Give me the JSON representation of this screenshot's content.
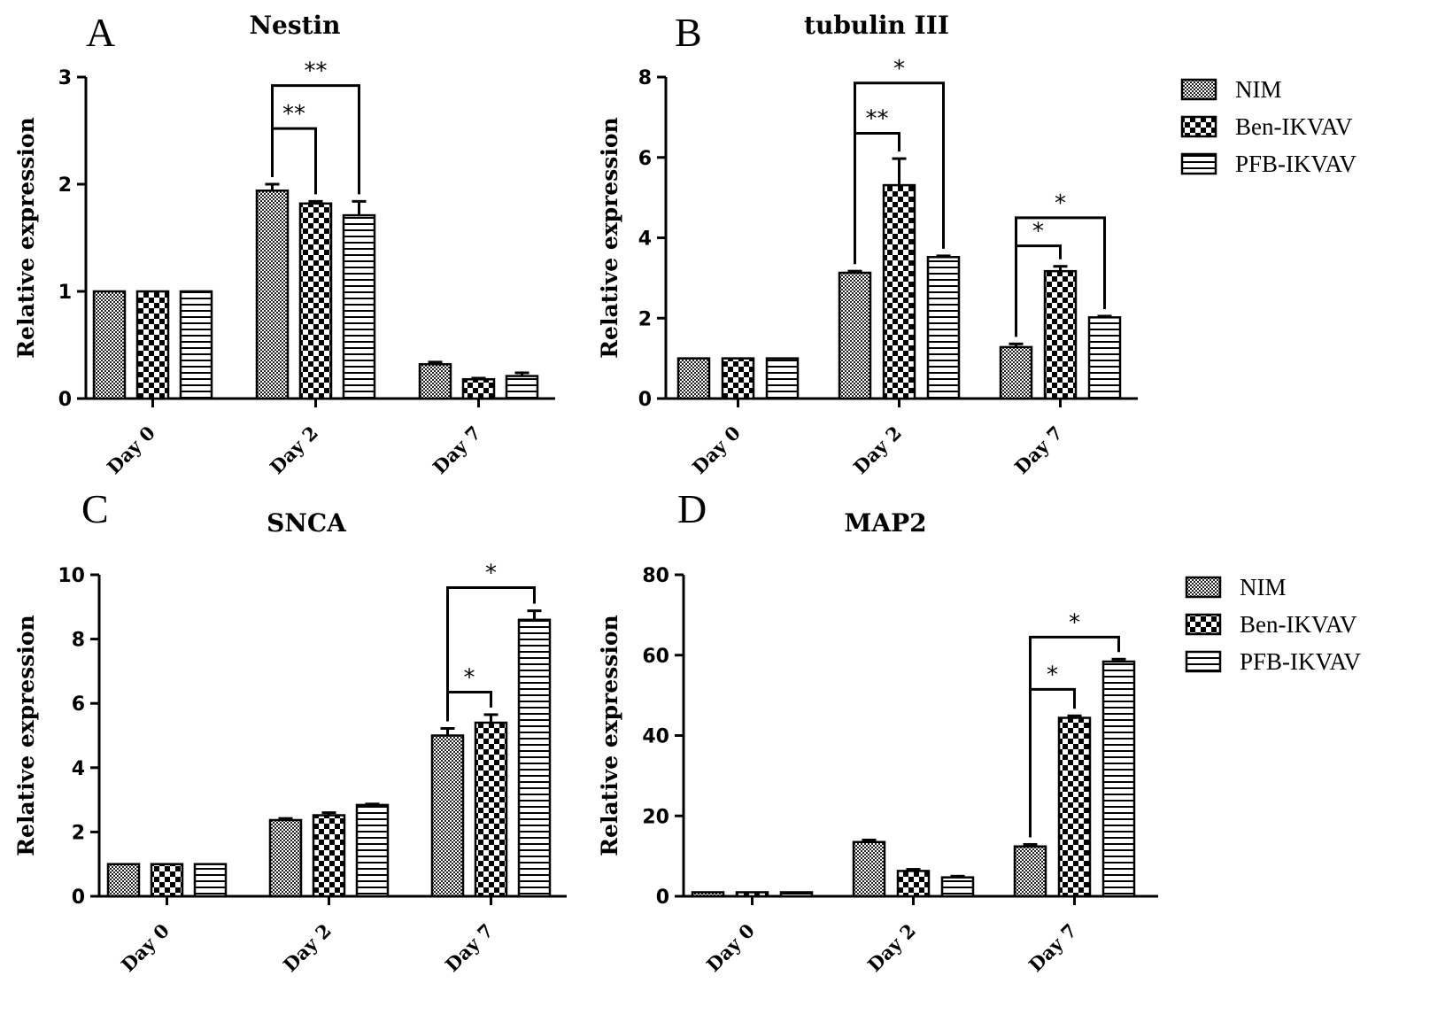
{
  "legend": [
    "NIM",
    "Ben-IKVAV",
    "PFB-IKVAV"
  ],
  "chart_data": [
    {
      "panel": "A",
      "type": "bar",
      "title": "Nestin",
      "xlabel": "",
      "ylabel": "Relative expression",
      "ylim": [
        0,
        3
      ],
      "yticks": [
        "0",
        "1",
        "2",
        "3"
      ],
      "categories": [
        "Day 0",
        "Day 2",
        "Day 7"
      ],
      "series": [
        {
          "name": "NIM",
          "values": [
            1.0,
            1.94,
            0.32
          ],
          "errors": [
            0,
            0.06,
            0.02
          ]
        },
        {
          "name": "Ben-IKVAV",
          "values": [
            1.0,
            1.82,
            0.18
          ],
          "errors": [
            0,
            0.02,
            0.01
          ]
        },
        {
          "name": "PFB-IKVAV",
          "values": [
            1.0,
            1.71,
            0.21
          ],
          "errors": [
            0,
            0.13,
            0.03
          ]
        }
      ],
      "significance": [
        {
          "label": "**",
          "category": "Day 2",
          "from": "NIM",
          "to": "Ben-IKVAV",
          "level": 2.52
        },
        {
          "label": "**",
          "category": "Day 2",
          "from": "NIM",
          "to": "PFB-IKVAV",
          "level": 2.92
        }
      ]
    },
    {
      "panel": "B",
      "type": "bar",
      "title": "tubulin III",
      "xlabel": "",
      "ylabel": "Relative expression",
      "ylim": [
        0,
        8
      ],
      "yticks": [
        "0",
        "2",
        "4",
        "6",
        "8"
      ],
      "categories": [
        "Day 0",
        "Day 2",
        "Day 7"
      ],
      "series": [
        {
          "name": "NIM",
          "values": [
            1.0,
            3.13,
            1.28
          ],
          "errors": [
            0,
            0.04,
            0.08
          ]
        },
        {
          "name": "Ben-IKVAV",
          "values": [
            1.0,
            5.31,
            3.17
          ],
          "errors": [
            0,
            0.66,
            0.12
          ]
        },
        {
          "name": "PFB-IKVAV",
          "values": [
            1.0,
            3.52,
            2.02
          ],
          "errors": [
            0,
            0.03,
            0.03
          ]
        }
      ],
      "significance": [
        {
          "label": "**",
          "category": "Day 2",
          "from": "NIM",
          "to": "Ben-IKVAV",
          "level": 6.6
        },
        {
          "label": "*",
          "category": "Day 2",
          "from": "NIM",
          "to": "PFB-IKVAV",
          "level": 7.85
        },
        {
          "label": "*",
          "category": "Day 7",
          "from": "NIM",
          "to": "Ben-IKVAV",
          "level": 3.8
        },
        {
          "label": "*",
          "category": "Day 7",
          "from": "NIM",
          "to": "PFB-IKVAV",
          "level": 4.5
        }
      ]
    },
    {
      "panel": "C",
      "type": "bar",
      "title": "SNCA",
      "xlabel": "",
      "ylabel": "Relative expression",
      "ylim": [
        0,
        10
      ],
      "yticks": [
        "0",
        "2",
        "4",
        "6",
        "8",
        "10"
      ],
      "categories": [
        "Day 0",
        "Day 2",
        "Day 7"
      ],
      "series": [
        {
          "name": "NIM",
          "values": [
            1.0,
            2.37,
            5.0
          ],
          "errors": [
            0,
            0.05,
            0.22
          ]
        },
        {
          "name": "Ben-IKVAV",
          "values": [
            1.0,
            2.52,
            5.4
          ],
          "errors": [
            0,
            0.08,
            0.25
          ]
        },
        {
          "name": "PFB-IKVAV",
          "values": [
            1.0,
            2.84,
            8.6
          ],
          "errors": [
            0,
            0.03,
            0.28
          ]
        }
      ],
      "significance": [
        {
          "label": "*",
          "category": "Day 7",
          "from": "NIM",
          "to": "Ben-IKVAV",
          "level": 6.35
        },
        {
          "label": "*",
          "category": "Day 7",
          "from": "NIM",
          "to": "PFB-IKVAV",
          "level": 9.6
        }
      ]
    },
    {
      "panel": "D",
      "type": "bar",
      "title": "MAP2",
      "xlabel": "",
      "ylabel": "Relative expression",
      "ylim": [
        0,
        80
      ],
      "yticks": [
        "0",
        "20",
        "40",
        "60",
        "80"
      ],
      "categories": [
        "Day 0",
        "Day 2",
        "Day 7"
      ],
      "series": [
        {
          "name": "NIM",
          "values": [
            1.0,
            13.5,
            12.4
          ],
          "errors": [
            0,
            0.5,
            0.5
          ]
        },
        {
          "name": "Ben-IKVAV",
          "values": [
            1.0,
            6.3,
            44.4
          ],
          "errors": [
            0,
            0.4,
            0.5
          ]
        },
        {
          "name": "PFB-IKVAV",
          "values": [
            1.0,
            4.7,
            58.4
          ],
          "errors": [
            0,
            0.3,
            0.6
          ]
        }
      ],
      "significance": [
        {
          "label": "*",
          "category": "Day 7",
          "from": "NIM",
          "to": "Ben-IKVAV",
          "level": 51.5
        },
        {
          "label": "*",
          "category": "Day 7",
          "from": "NIM",
          "to": "PFB-IKVAV",
          "level": 64.5
        }
      ]
    }
  ]
}
